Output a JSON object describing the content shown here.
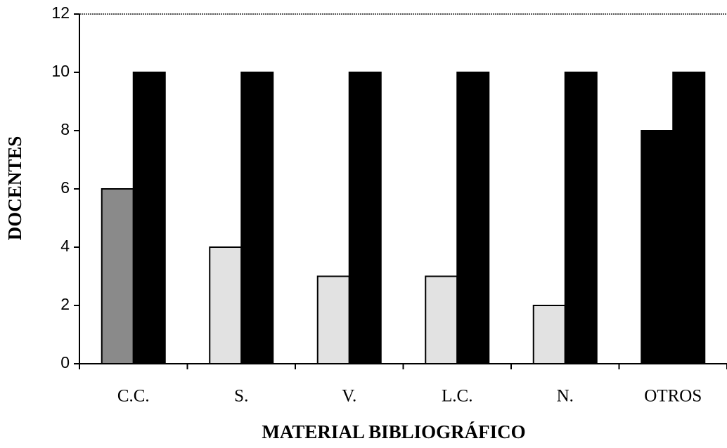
{
  "chart_data": {
    "type": "bar",
    "x_label": "MATERIAL BIBLIOGRÁFICO",
    "y_label": "DOCENTES",
    "categories": [
      "C.C.",
      "S.",
      "V.",
      "L.C.",
      "N.",
      "OTROS"
    ],
    "series": [
      {
        "colors": [
          "#8a8a8a",
          "#e2e2e2",
          "#e2e2e2",
          "#e2e2e2",
          "#e2e2e2",
          "#000000"
        ],
        "values": [
          6,
          4,
          3,
          3,
          2,
          8
        ]
      },
      {
        "color": "#000000",
        "values": [
          10,
          10,
          10,
          10,
          10,
          10
        ]
      }
    ],
    "ylim": [
      0,
      12
    ],
    "yticks": [
      0,
      2,
      4,
      6,
      8,
      10,
      12
    ]
  }
}
